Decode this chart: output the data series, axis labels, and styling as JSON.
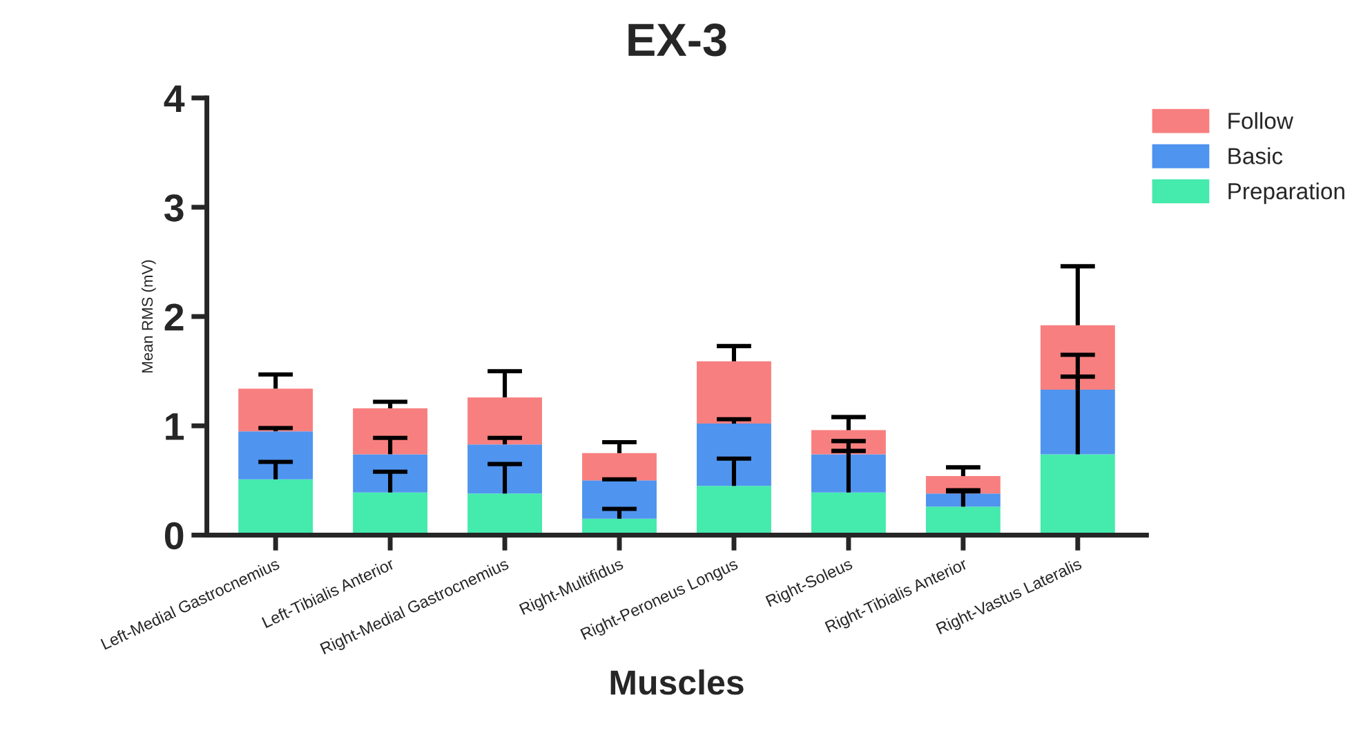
{
  "chart_data": {
    "type": "bar",
    "title": "EX-3",
    "xlabel": "Muscles",
    "ylabel": "Mean RMS (mV)",
    "stacked": true,
    "categories": [
      "Left-Medial Gastrocnemius",
      "Left-Tibialis Anterior",
      "Right-Medial Gastrocnemius",
      "Right-Multifidus",
      "Right-Peroneus Longus",
      "Right-Soleus",
      "Right-Tibialis Anterior",
      "Right-Vastus Lateralis"
    ],
    "series": [
      {
        "name": "Preparation",
        "color": "#45eaad",
        "values": [
          0.51,
          0.39,
          0.38,
          0.15,
          0.45,
          0.39,
          0.26,
          0.74
        ],
        "errors": [
          [
            0.51,
            0.67
          ],
          [
            0.39,
            0.58
          ],
          [
            0.38,
            0.65
          ],
          [
            0.15,
            0.24
          ],
          [
            0.45,
            0.7
          ],
          [
            0.39,
            0.77
          ],
          [
            0.26,
            0.4
          ],
          [
            0.74,
            1.45
          ]
        ]
      },
      {
        "name": "Basic",
        "color": "#4f94ef",
        "values": [
          0.44,
          0.35,
          0.45,
          0.35,
          0.57,
          0.35,
          0.12,
          0.59
        ],
        "errors": [
          [
            0.95,
            0.98
          ],
          [
            0.74,
            0.89
          ],
          [
            0.83,
            0.89
          ],
          [
            0.5,
            0.51
          ],
          [
            1.02,
            1.06
          ],
          [
            0.74,
            0.86
          ],
          [
            0.38,
            0.41
          ],
          [
            1.33,
            1.65
          ]
        ]
      },
      {
        "name": "Follow",
        "color": "#f87f7f",
        "values": [
          0.39,
          0.42,
          0.43,
          0.25,
          0.57,
          0.22,
          0.16,
          0.59
        ],
        "errors": [
          [
            1.34,
            1.47
          ],
          [
            1.16,
            1.22
          ],
          [
            1.26,
            1.5
          ],
          [
            0.75,
            0.85
          ],
          [
            1.59,
            1.73
          ],
          [
            0.96,
            1.08
          ],
          [
            0.54,
            0.62
          ],
          [
            1.92,
            2.46
          ]
        ]
      }
    ],
    "ylim": [
      0,
      4
    ],
    "yticks": [
      0,
      1,
      2,
      3,
      4
    ],
    "grid": false,
    "legend": "top right"
  }
}
